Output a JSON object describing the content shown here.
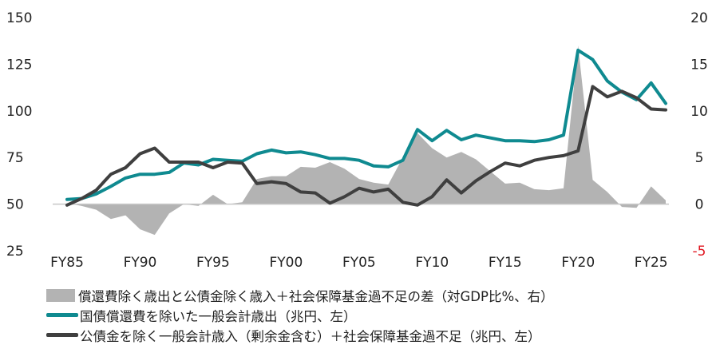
{
  "chart_data": {
    "type": "line",
    "left_axis": {
      "ticks": [
        "150",
        "125",
        "100",
        "75",
        "50",
        "25"
      ],
      "range": [
        25,
        150
      ]
    },
    "right_axis": {
      "ticks": [
        "20",
        "15",
        "10",
        "5",
        "0",
        "-5"
      ],
      "range": [
        -5,
        20
      ]
    },
    "x_labels": [
      "FY85",
      "FY90",
      "FY95",
      "FY00",
      "FY05",
      "FY10",
      "FY15",
      "FY20",
      "FY25"
    ],
    "x_start": 1985,
    "colors": {
      "area": "#b3b3b3",
      "expenditure": "#0f8a90",
      "revenue": "#3f3f3f",
      "negative_tick": "#e0141e"
    },
    "series": [
      {
        "name": "償還費除く歳出と公債金除く歳入＋社会保障基金過不足の差（対GDP比%、右）",
        "type": "area",
        "axis": "right",
        "values": [
          0.1,
          -0.2,
          -0.6,
          -1.6,
          -1.2,
          -2.7,
          -3.3,
          -1.0,
          0.0,
          -0.2,
          1.0,
          0.0,
          0.2,
          2.7,
          3.0,
          3.0,
          4.0,
          3.9,
          4.5,
          3.8,
          2.7,
          2.3,
          2.1,
          5.0,
          7.6,
          6.0,
          5.0,
          5.6,
          4.8,
          3.5,
          2.2,
          2.3,
          1.6,
          1.5,
          1.7,
          17.0,
          2.6,
          1.3,
          -0.3,
          -0.4,
          1.9,
          0.4
        ]
      },
      {
        "name": "国債償還費を除いた一般会計歳出（兆円、左）",
        "type": "line",
        "axis": "left",
        "values": [
          52.5,
          53.0,
          55.5,
          59.5,
          64.0,
          66.0,
          66.0,
          67.0,
          72.0,
          71.0,
          74.0,
          73.5,
          73.0,
          77.0,
          79.0,
          77.5,
          78.0,
          76.5,
          74.5,
          74.5,
          73.5,
          70.5,
          70.0,
          73.5,
          90.0,
          84.0,
          89.5,
          84.5,
          87.0,
          85.5,
          84.0,
          84.0,
          83.5,
          84.5,
          87.0,
          132.5,
          127.5,
          116.0,
          110.0,
          106.0,
          115.0,
          104.0
        ]
      },
      {
        "name": "公債金を除く一般会計歳入（剰余金含む）＋社会保障基金過不足（兆円、左）",
        "type": "line",
        "axis": "left",
        "values": [
          49.5,
          53.0,
          57.5,
          66.0,
          69.5,
          77.0,
          80.0,
          72.5,
          72.5,
          72.5,
          69.5,
          72.5,
          72.0,
          61.0,
          62.0,
          61.0,
          56.5,
          56.0,
          50.5,
          54.0,
          58.5,
          56.5,
          58.0,
          51.0,
          49.5,
          54.0,
          63.0,
          56.0,
          62.5,
          67.5,
          72.0,
          70.5,
          73.5,
          75.0,
          76.0,
          78.5,
          113.0,
          107.5,
          110.5,
          107.0,
          101.0,
          100.5
        ]
      }
    ]
  }
}
